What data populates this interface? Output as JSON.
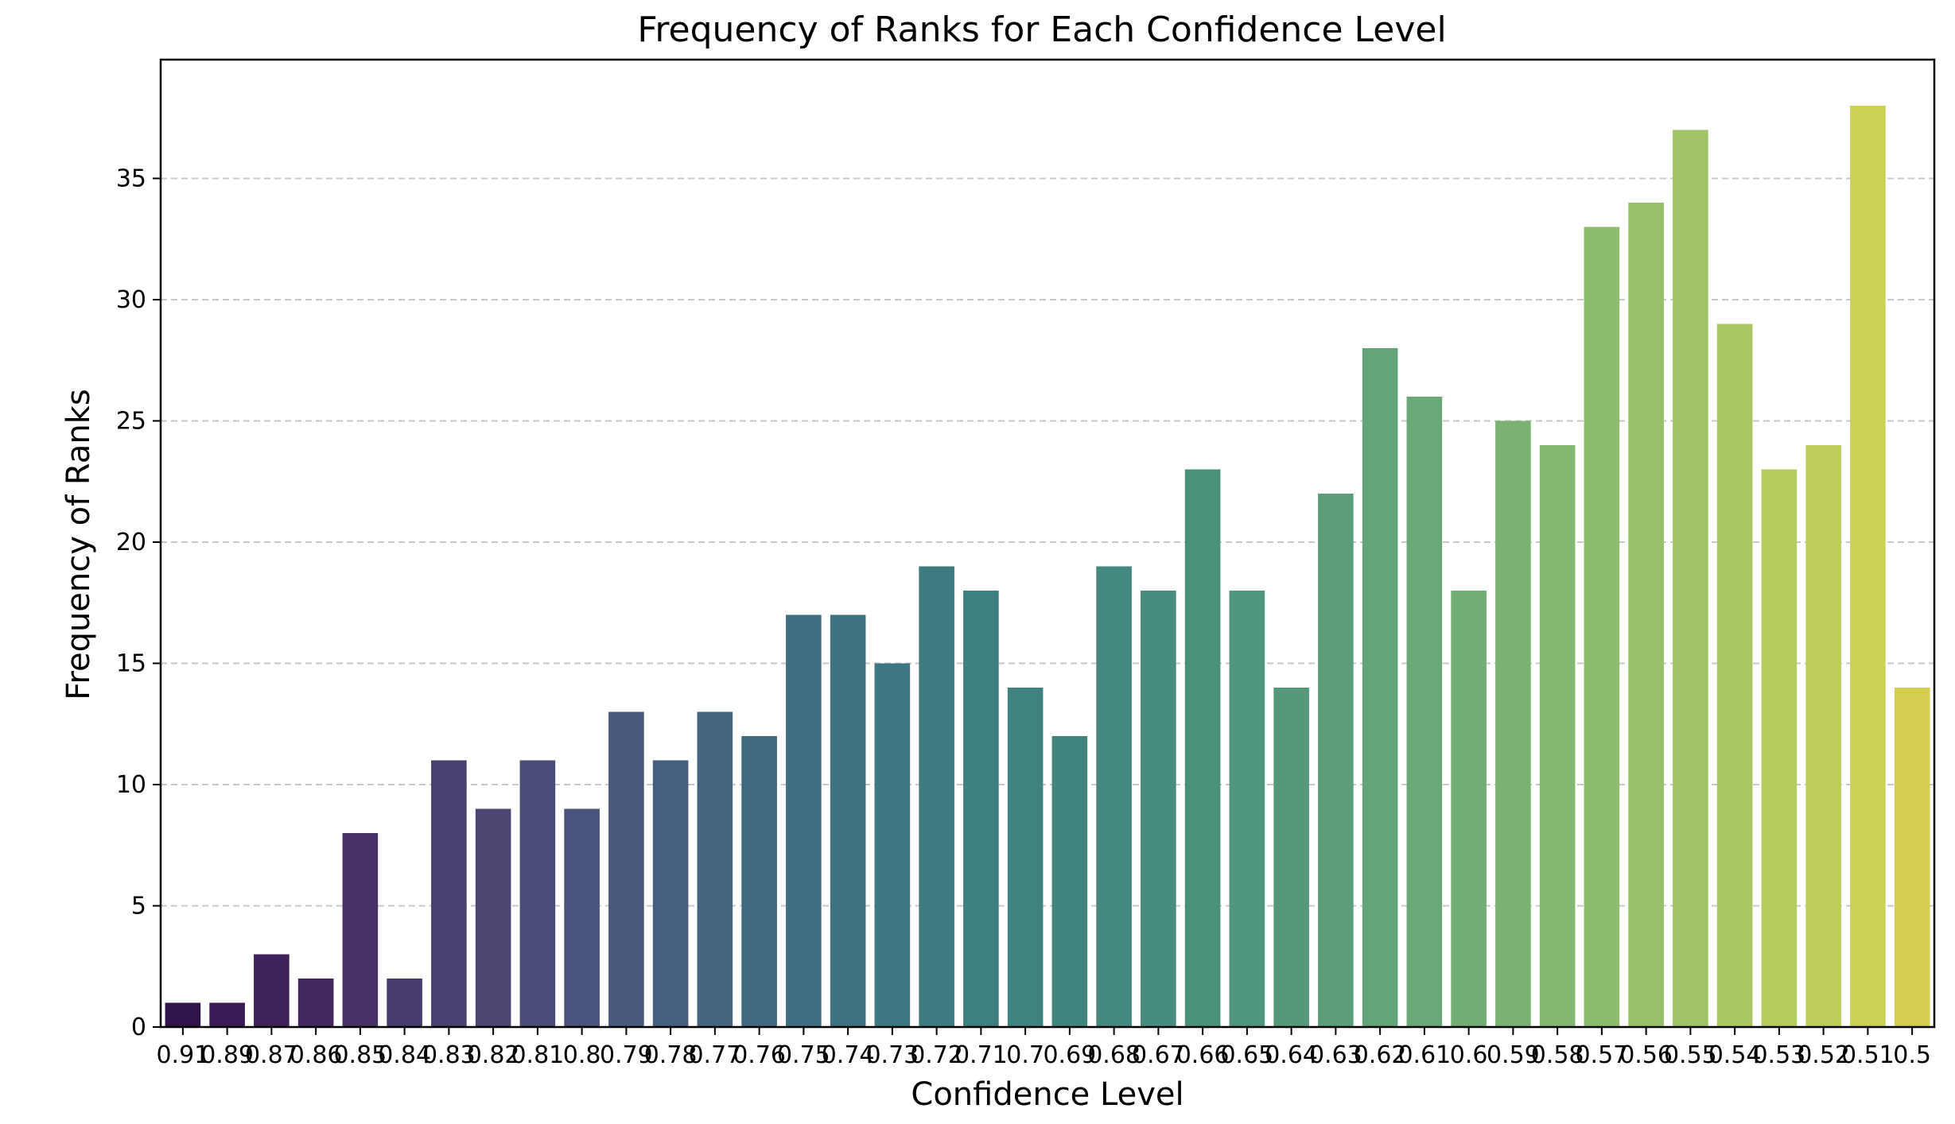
{
  "chart_data": {
    "type": "bar",
    "title": "Frequency of Ranks for Each Confidence Level",
    "xlabel": "Confidence Level",
    "ylabel": "Frequency of Ranks",
    "ylim": [
      0,
      39.9
    ],
    "yticks": [
      0,
      5,
      10,
      15,
      20,
      25,
      30,
      35
    ],
    "grid": "horizontal dashed",
    "palette": "viridis",
    "categories": [
      "0.91",
      "0.89",
      "0.87",
      "0.86",
      "0.85",
      "0.84",
      "0.83",
      "0.82",
      "0.81",
      "0.8",
      "0.79",
      "0.78",
      "0.77",
      "0.76",
      "0.75",
      "0.74",
      "0.73",
      "0.72",
      "0.71",
      "0.7",
      "0.69",
      "0.68",
      "0.67",
      "0.66",
      "0.65",
      "0.64",
      "0.63",
      "0.62",
      "0.61",
      "0.6",
      "0.59",
      "0.58",
      "0.57",
      "0.56",
      "0.55",
      "0.54",
      "0.53",
      "0.52",
      "0.51",
      "0.5"
    ],
    "values": [
      1,
      1,
      3,
      2,
      8,
      2,
      11,
      9,
      11,
      9,
      13,
      11,
      13,
      12,
      17,
      17,
      15,
      19,
      18,
      14,
      12,
      19,
      18,
      23,
      18,
      14,
      22,
      28,
      26,
      18,
      25,
      24,
      33,
      34,
      37,
      29,
      23,
      24,
      38,
      14
    ],
    "colors": [
      "#2f1349",
      "#3a1a55",
      "#3f2259",
      "#43285f",
      "#473266",
      "#473a6c",
      "#4a406f",
      "#4b4672",
      "#4b4c77",
      "#4a537b",
      "#48597d",
      "#465f80",
      "#436580",
      "#416a81",
      "#3f6e80",
      "#3e7280",
      "#3d7781",
      "#3d7b80",
      "#3e7f80",
      "#408280",
      "#42857f",
      "#44887f",
      "#478c7d",
      "#4a917c",
      "#4f967c",
      "#55997a",
      "#5c9e79",
      "#63a478",
      "#6aa977",
      "#71ad74",
      "#7ab273",
      "#84b871",
      "#8dbc6d",
      "#97c06a",
      "#a0c466",
      "#aac762",
      "#b5cc5f",
      "#bfce5a",
      "#cad156",
      "#d3ce51"
    ]
  }
}
